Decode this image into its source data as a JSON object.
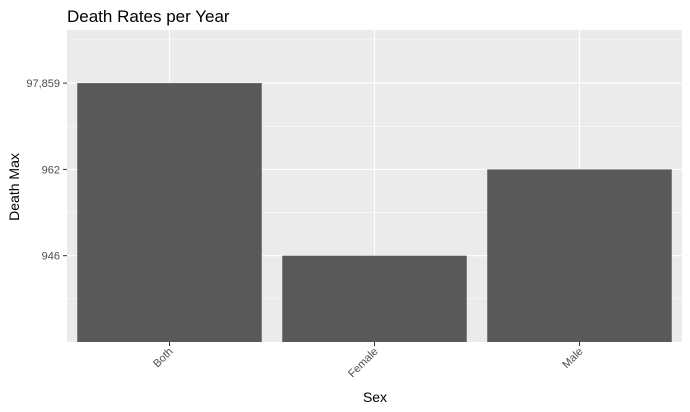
{
  "chart_data": {
    "type": "bar",
    "title": "Death Rates per Year",
    "xlabel": "Sex",
    "ylabel": "Death Max",
    "categories": [
      "Both",
      "Female",
      "Male"
    ],
    "values": [
      "97,859",
      "946",
      "962"
    ],
    "y_axis": {
      "scale": "discrete",
      "ticks": [
        "946",
        "962",
        "97,859"
      ]
    },
    "x_tick_rotation_deg": -45,
    "grid": true,
    "legend": "none",
    "colors": {
      "bar": "#595959",
      "panel": "#ebebeb",
      "grid": "#ffffff",
      "background": "#ffffff"
    }
  }
}
